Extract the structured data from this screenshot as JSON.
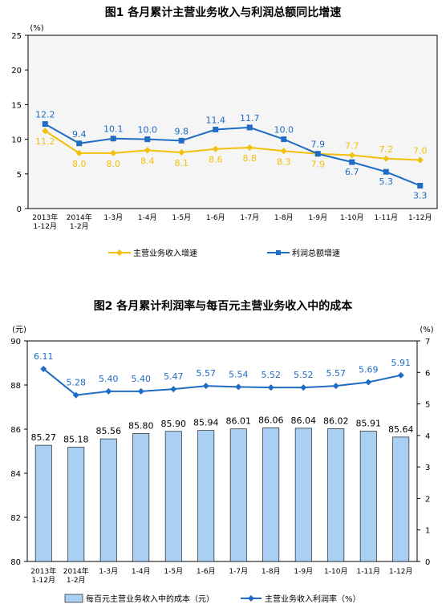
{
  "chart_data": [
    {
      "type": "line",
      "title": "图1  各月累计主营业务收入与利润总额同比增速",
      "unit": "(%)",
      "categories": [
        [
          "2013年",
          "1-12月"
        ],
        [
          "2014年",
          "1-2月"
        ],
        [
          "1-3月"
        ],
        [
          "1-4月"
        ],
        [
          "1-5月"
        ],
        [
          "1-6月"
        ],
        [
          "1-7月"
        ],
        [
          "1-8月"
        ],
        [
          "1-9月"
        ],
        [
          "1-10月"
        ],
        [
          "1-11月"
        ],
        [
          "1-12月"
        ]
      ],
      "ylim": [
        0,
        25
      ],
      "yticks": [
        0,
        5,
        10,
        15,
        20,
        25
      ],
      "legend_position": "bottom",
      "grid": false,
      "series": [
        {
          "name": "主营业务收入增速",
          "color": "#f2c00a",
          "marker": "diamond",
          "values": [
            11.2,
            8.0,
            8.0,
            8.4,
            8.1,
            8.6,
            8.8,
            8.3,
            7.9,
            7.7,
            7.2,
            7.0
          ],
          "labels": [
            "11.2",
            "8.0",
            "8.0",
            "8.4",
            "8.1",
            "8.6",
            "8.8",
            "8.3",
            "7.9",
            "7.7",
            "7.2",
            "7.0"
          ]
        },
        {
          "name": "利润总额增速",
          "color": "#1f6cc4",
          "marker": "square",
          "values": [
            12.2,
            9.4,
            10.1,
            10.0,
            9.8,
            11.4,
            11.7,
            10.0,
            7.9,
            6.7,
            5.3,
            3.3
          ],
          "labels": [
            "12.2",
            "9.4",
            "10.1",
            "10.0",
            "9.8",
            "11.4",
            "11.7",
            "10.0",
            "7.9",
            "6.7",
            "5.3",
            "3.3"
          ]
        }
      ]
    },
    {
      "type": "bar",
      "title": "图2  各月累计利润率与每百元主营业务收入中的成本",
      "unit_left": "(元)",
      "unit_right": "(%)",
      "categories": [
        [
          "2013年",
          "1-12月"
        ],
        [
          "2014年",
          "1-2月"
        ],
        [
          "1-3月"
        ],
        [
          "1-4月"
        ],
        [
          "1-5月"
        ],
        [
          "1-6月"
        ],
        [
          "1-7月"
        ],
        [
          "1-8月"
        ],
        [
          "1-9月"
        ],
        [
          "1-10月"
        ],
        [
          "1-11月"
        ],
        [
          "1-12月"
        ]
      ],
      "ylim": [
        80,
        90
      ],
      "yticks": [
        80,
        82,
        84,
        86,
        88,
        90
      ],
      "y2lim": [
        0,
        7
      ],
      "y2ticks": [
        0,
        1,
        2,
        3,
        4,
        5,
        6,
        7
      ],
      "legend_position": "bottom",
      "grid": false,
      "bars": {
        "name": "每百元主营业务收入中的成本（元）",
        "color": "#a9cff2",
        "values": [
          85.27,
          85.18,
          85.56,
          85.8,
          85.9,
          85.94,
          86.01,
          86.06,
          86.04,
          86.02,
          85.91,
          85.64
        ],
        "labels": [
          "85.27",
          "85.18",
          "85.56",
          "85.80",
          "85.90",
          "85.94",
          "86.01",
          "86.06",
          "86.04",
          "86.02",
          "85.91",
          "85.64"
        ]
      },
      "line": {
        "name": "主营业务收入利润率（%）",
        "color": "#1f6cc4",
        "marker": "diamond",
        "axis": "right",
        "values": [
          6.11,
          5.28,
          5.4,
          5.4,
          5.47,
          5.57,
          5.54,
          5.52,
          5.52,
          5.57,
          5.69,
          5.91
        ],
        "labels": [
          "6.11",
          "5.28",
          "5.40",
          "5.40",
          "5.47",
          "5.57",
          "5.54",
          "5.52",
          "5.52",
          "5.57",
          "5.69",
          "5.91"
        ]
      }
    }
  ]
}
